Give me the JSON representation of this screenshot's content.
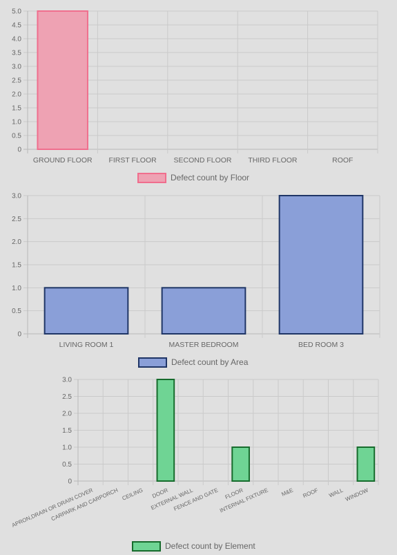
{
  "chart_data": [
    {
      "type": "bar",
      "categories": [
        "GROUND FLOOR",
        "FIRST FLOOR",
        "SECOND FLOOR",
        "THIRD FLOOR",
        "ROOF"
      ],
      "series": [
        {
          "name": "Defect count by Floor",
          "values": [
            5,
            0,
            0,
            0,
            0
          ]
        }
      ],
      "ylim": [
        0,
        5
      ],
      "yticks": [
        "5.0",
        "4.5",
        "4.0",
        "3.5",
        "3.0",
        "2.5",
        "2.0",
        "1.5",
        "1.0",
        "0.5",
        "0"
      ],
      "grid": true,
      "legend": "bottom",
      "colors": {
        "fill": "#eea2b3",
        "stroke": "#f06e8d"
      }
    },
    {
      "type": "bar",
      "categories": [
        "LIVING ROOM 1",
        "MASTER BEDROOM",
        "BED ROOM 3"
      ],
      "series": [
        {
          "name": "Defect count by Area",
          "values": [
            1,
            1,
            3
          ]
        }
      ],
      "ylim": [
        0,
        3
      ],
      "yticks": [
        "3.0",
        "2.5",
        "2.0",
        "1.5",
        "1.0",
        "0.5",
        "0"
      ],
      "grid": true,
      "legend": "bottom",
      "colors": {
        "fill": "#8a9fd8",
        "stroke": "#1f3566"
      }
    },
    {
      "type": "bar",
      "categories": [
        "APRON,DRAIN OR DRAIN COVER",
        "CARPARK AND CARPORCH",
        "CEILING",
        "DOOR",
        "EXTERNAL WALL",
        "FENCE AND GATE",
        "FLOOR",
        "INTERNAL FIXTURE",
        "M&E",
        "ROOF",
        "WALL",
        "WINDOW"
      ],
      "series": [
        {
          "name": "Defect count by Element",
          "values": [
            0,
            0,
            0,
            3,
            0,
            0,
            1,
            0,
            0,
            0,
            0,
            1
          ]
        }
      ],
      "ylim": [
        0,
        3
      ],
      "yticks": [
        "3.0",
        "2.5",
        "2.0",
        "1.5",
        "1.0",
        "0.5",
        "0"
      ],
      "grid": true,
      "legend": "bottom",
      "colors": {
        "fill": "#6fd494",
        "stroke": "#166b2c"
      }
    }
  ]
}
